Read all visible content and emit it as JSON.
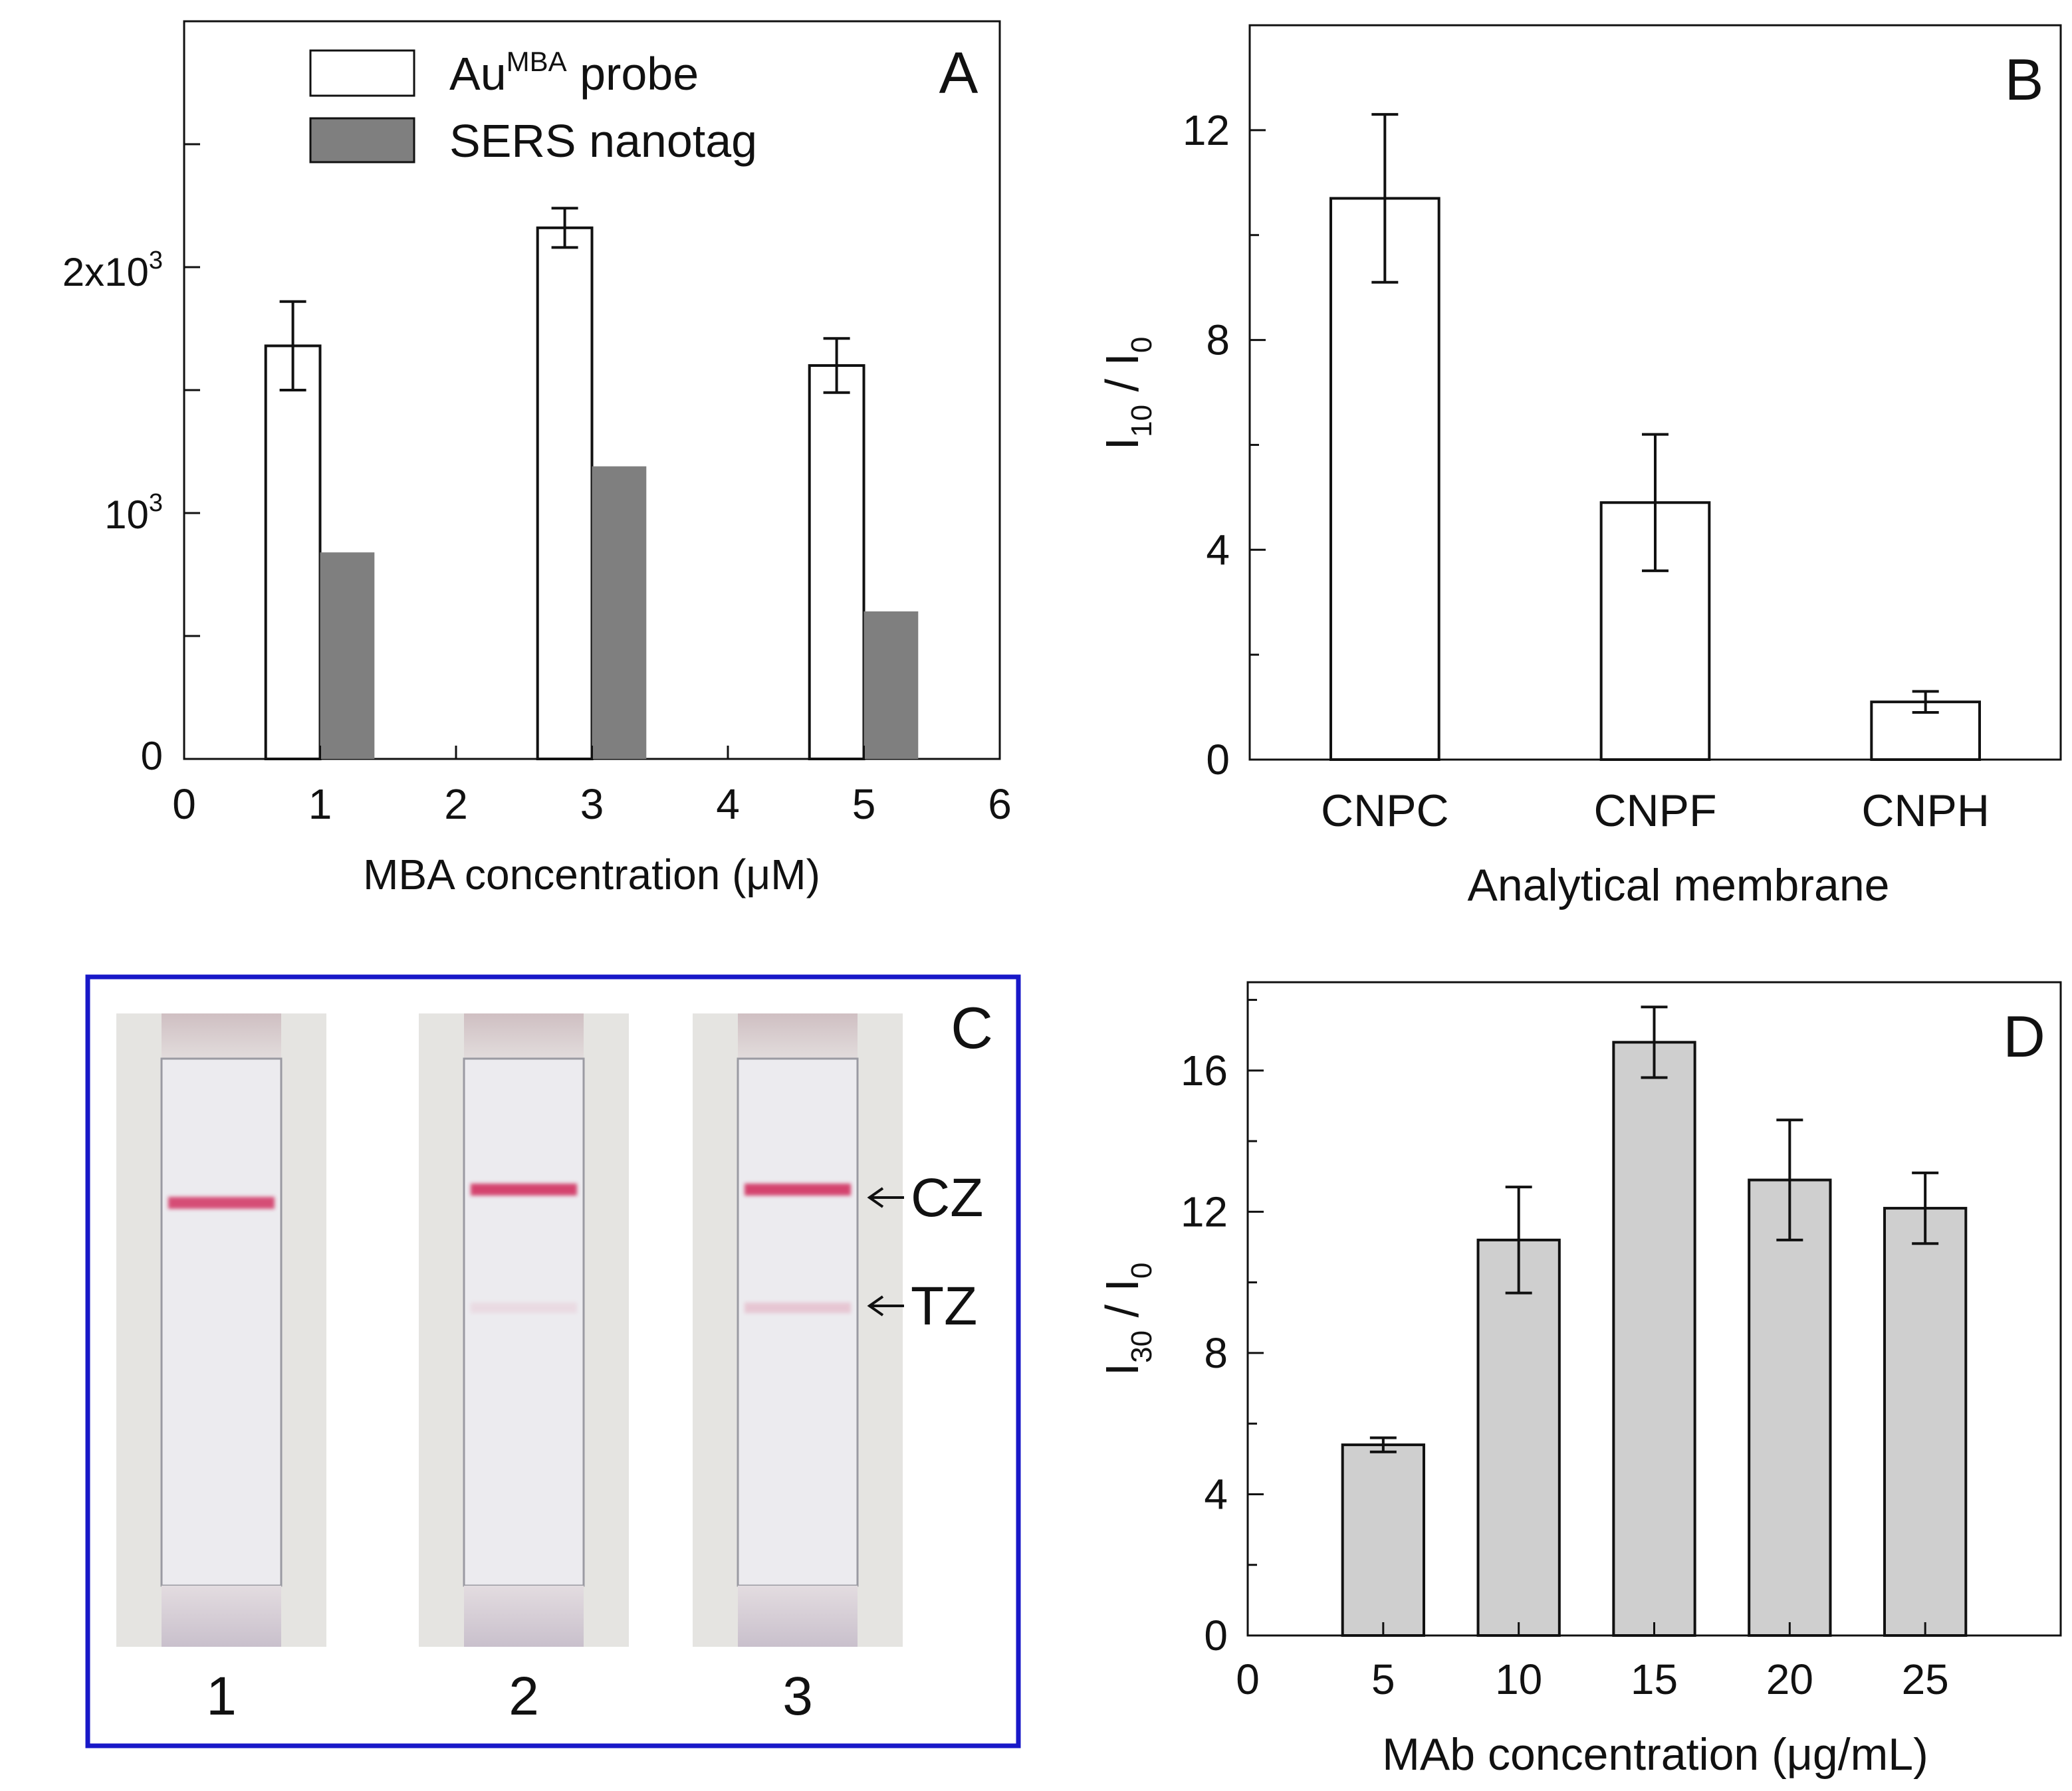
{
  "colors": {
    "axis": "#111111",
    "bar_open": "#ffffff",
    "bar_gray_dark": "#7f7f7f",
    "bar_gray_light": "#cfcfcf",
    "panel_c_border": "#1818c8",
    "strip_background": "#e5e4e1",
    "strip_membrane": "#ecebef",
    "line_red": "#d02858"
  },
  "chart_data": [
    {
      "panel": "A",
      "type": "bar",
      "xlabel": "MBA concentration (μM)",
      "ylabel": "",
      "xlim": [
        0,
        6
      ],
      "ylim": [
        0,
        3000
      ],
      "x_ticks": [
        "0",
        "1",
        "2",
        "3",
        "4",
        "5",
        "6"
      ],
      "y_tick_labels": [
        {
          "value": 0,
          "label": "0"
        },
        {
          "value": 1000,
          "base": "10",
          "exp": "3"
        },
        {
          "value": 2000,
          "base": "2x10",
          "exp": "3"
        }
      ],
      "y_minor_ticks": [
        500,
        1500,
        2500
      ],
      "legend": {
        "position": "top-right",
        "entries": [
          {
            "base": "Au",
            "sup": "MBA",
            "rest": " probe",
            "style": "open"
          },
          {
            "text": "SERS nanotag",
            "style": "dark-gray"
          }
        ]
      },
      "series": [
        {
          "name": "AuMBA probe",
          "style": "open",
          "x": [
            1,
            3,
            5
          ],
          "values": [
            1680,
            2160,
            1600
          ],
          "errors": [
            180,
            80,
            110
          ]
        },
        {
          "name": "SERS nanotag",
          "style": "dark-gray",
          "x": [
            1,
            3,
            5
          ],
          "values": [
            840,
            1190,
            600
          ]
        }
      ]
    },
    {
      "panel": "B",
      "type": "bar",
      "xlabel": "Analytical membrane",
      "ylabel": {
        "base": "I",
        "sub1": "10",
        "middle": " / I",
        "sub2": "0"
      },
      "ylim": [
        0,
        14
      ],
      "y_ticks": [
        0,
        4,
        8,
        12
      ],
      "y_minor_ticks": [
        2,
        6,
        10,
        14
      ],
      "categories": [
        "CNPC",
        "CNPF",
        "CNPH"
      ],
      "values": [
        10.7,
        4.9,
        1.1
      ],
      "errors": [
        1.6,
        1.3,
        0.2
      ]
    },
    {
      "panel": "D",
      "type": "bar",
      "xlabel": "MAb concentration (μg/mL)",
      "ylabel": {
        "base": "I",
        "sub1": "30",
        "middle": " / I",
        "sub2": "0"
      },
      "xlim": [
        0,
        30
      ],
      "ylim": [
        0,
        18.5
      ],
      "x_ticks": [
        "0",
        "5",
        "10",
        "15",
        "20",
        "25"
      ],
      "y_ticks": [
        0,
        4,
        8,
        12,
        16
      ],
      "y_minor_ticks": [
        2,
        6,
        10,
        14,
        18
      ],
      "x": [
        5,
        10,
        15,
        20,
        25
      ],
      "values": [
        5.4,
        11.2,
        16.8,
        12.9,
        12.1
      ],
      "errors": [
        0.2,
        1.5,
        1.0,
        1.7,
        1.0
      ]
    }
  ],
  "panel_c": {
    "label": "C",
    "strips": [
      {
        "label": "1",
        "cz_intensity": 0.8,
        "tz_intensity": 0.0
      },
      {
        "label": "2",
        "cz_intensity": 0.85,
        "tz_intensity": 0.08
      },
      {
        "label": "3",
        "cz_intensity": 0.85,
        "tz_intensity": 0.18
      }
    ],
    "annotations": [
      {
        "zone": "cz",
        "text": "CZ"
      },
      {
        "zone": "tz",
        "text": "TZ"
      }
    ]
  }
}
